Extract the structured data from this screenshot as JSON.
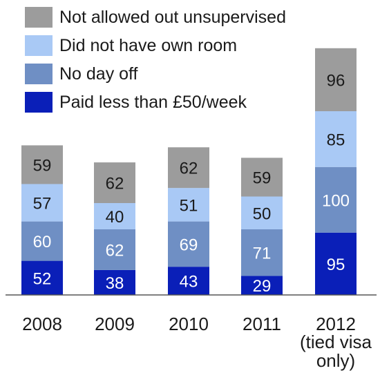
{
  "chart_data": {
    "type": "bar",
    "stacked": true,
    "categories": [
      "2008",
      "2009",
      "2010",
      "2011",
      "2012"
    ],
    "category_sublabels": [
      "",
      "",
      "",
      "",
      "(tied visa\nonly)"
    ],
    "series": [
      {
        "name": "Paid less than £50/week",
        "color": "#0a1fb8",
        "label_color": "#ffffff",
        "values": [
          52,
          38,
          43,
          29,
          95
        ]
      },
      {
        "name": "No day off",
        "color": "#6f8fc4",
        "label_color": "#ffffff",
        "values": [
          60,
          62,
          69,
          71,
          100
        ]
      },
      {
        "name": "Did not have own room",
        "color": "#a9c9f5",
        "label_color": "#1a1a1a",
        "values": [
          57,
          40,
          51,
          50,
          85
        ]
      },
      {
        "name": "Not allowed out unsupervised",
        "color": "#9c9c9c",
        "label_color": "#1a1a1a",
        "values": [
          59,
          62,
          62,
          59,
          96
        ]
      }
    ],
    "legend_order": [
      "Not allowed out unsupervised",
      "Did not have own room",
      "No day off",
      "Paid less than £50/week"
    ],
    "legend_position": "top-left",
    "grid": false,
    "ylim": [
      0,
      376
    ]
  }
}
